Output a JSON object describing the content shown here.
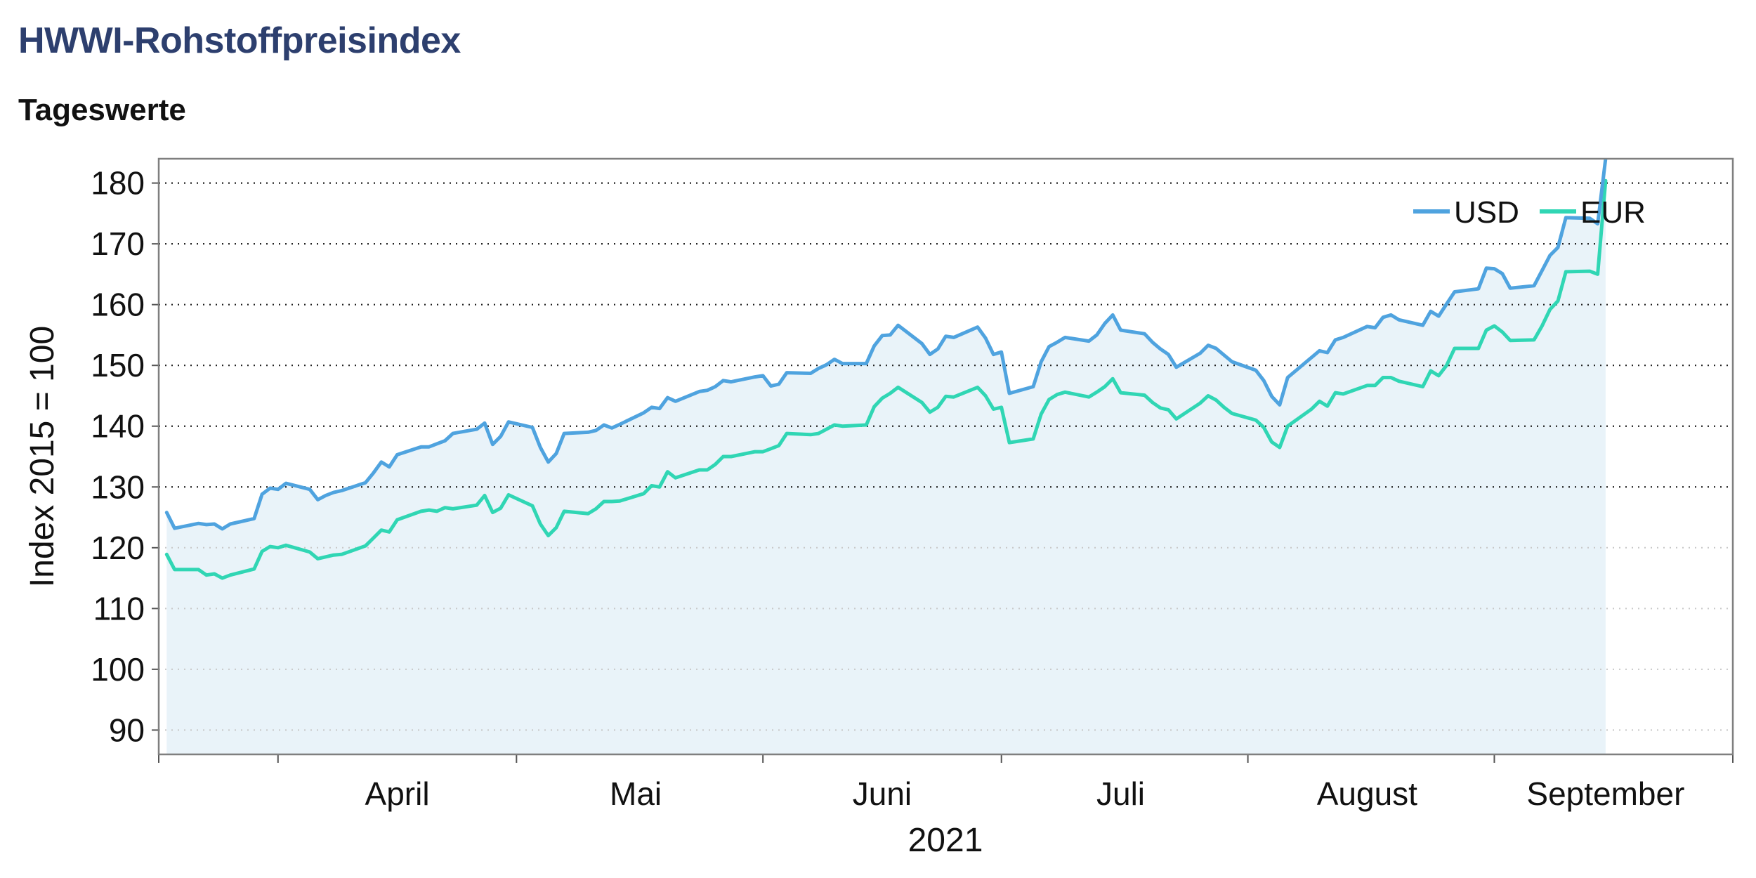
{
  "title": "HWWI-Rohstoffpreisindex",
  "subtitle": "Tageswerte",
  "colors": {
    "title": "#2d3f6e",
    "usd": "#4fa3df",
    "eur": "#30d6b4",
    "area": "#e9f3f9"
  },
  "chart_data": {
    "type": "line",
    "title": "HWWI-Rohstoffpreisindex",
    "subtitle": "Tageswerte",
    "xlabel": "2021",
    "ylabel": "Index 2015 = 100",
    "ylim": [
      86,
      184
    ],
    "yticks": [
      90,
      100,
      110,
      120,
      130,
      140,
      150,
      160,
      170,
      180
    ],
    "x_range": [
      "2021-03-17",
      "2021-10-01"
    ],
    "month_boundaries": [
      "2021-04-01",
      "2021-05-01",
      "2021-06-01",
      "2021-07-01",
      "2021-08-01",
      "2021-09-01",
      "2021-10-01"
    ],
    "month_labels": [
      {
        "label": "April",
        "date": "2021-04-16"
      },
      {
        "label": "Mai",
        "date": "2021-05-16"
      },
      {
        "label": "Juni",
        "date": "2021-06-16"
      },
      {
        "label": "Juli",
        "date": "2021-07-16"
      },
      {
        "label": "August",
        "date": "2021-08-16"
      },
      {
        "label": "September",
        "date": "2021-09-15"
      }
    ],
    "grid": "horizontal dotted",
    "legend": "top-right",
    "series": [
      {
        "name": "USD",
        "color": "#4fa3df",
        "points": [
          [
            "2021-03-18",
            125.8
          ],
          [
            "2021-03-19",
            123.2
          ],
          [
            "2021-03-22",
            124.0
          ],
          [
            "2021-03-23",
            123.8
          ],
          [
            "2021-03-24",
            123.9
          ],
          [
            "2021-03-25",
            123.1
          ],
          [
            "2021-03-26",
            123.9
          ],
          [
            "2021-03-29",
            124.8
          ],
          [
            "2021-03-30",
            128.8
          ],
          [
            "2021-03-31",
            129.8
          ],
          [
            "2021-04-01",
            129.6
          ],
          [
            "2021-04-02",
            130.6
          ],
          [
            "2021-04-05",
            129.6
          ],
          [
            "2021-04-06",
            127.9
          ],
          [
            "2021-04-07",
            128.6
          ],
          [
            "2021-04-08",
            129.1
          ],
          [
            "2021-04-09",
            129.4
          ],
          [
            "2021-04-12",
            130.7
          ],
          [
            "2021-04-13",
            132.3
          ],
          [
            "2021-04-14",
            134.1
          ],
          [
            "2021-04-15",
            133.3
          ],
          [
            "2021-04-16",
            135.3
          ],
          [
            "2021-04-19",
            136.6
          ],
          [
            "2021-04-20",
            136.6
          ],
          [
            "2021-04-21",
            137.1
          ],
          [
            "2021-04-22",
            137.6
          ],
          [
            "2021-04-23",
            138.8
          ],
          [
            "2021-04-26",
            139.5
          ],
          [
            "2021-04-27",
            140.5
          ],
          [
            "2021-04-28",
            137.0
          ],
          [
            "2021-04-29",
            138.3
          ],
          [
            "2021-04-30",
            140.7
          ],
          [
            "2021-05-03",
            139.8
          ],
          [
            "2021-05-04",
            136.5
          ],
          [
            "2021-05-05",
            134.1
          ],
          [
            "2021-05-06",
            135.5
          ],
          [
            "2021-05-07",
            138.8
          ],
          [
            "2021-05-10",
            139.0
          ],
          [
            "2021-05-11",
            139.3
          ],
          [
            "2021-05-12",
            140.2
          ],
          [
            "2021-05-13",
            139.7
          ],
          [
            "2021-05-14",
            140.3
          ],
          [
            "2021-05-17",
            142.2
          ],
          [
            "2021-05-18",
            143.1
          ],
          [
            "2021-05-19",
            142.9
          ],
          [
            "2021-05-20",
            144.7
          ],
          [
            "2021-05-21",
            144.1
          ],
          [
            "2021-05-24",
            145.7
          ],
          [
            "2021-05-25",
            145.9
          ],
          [
            "2021-05-26",
            146.5
          ],
          [
            "2021-05-27",
            147.5
          ],
          [
            "2021-05-28",
            147.3
          ],
          [
            "2021-05-31",
            148.1
          ],
          [
            "2021-06-01",
            148.3
          ],
          [
            "2021-06-02",
            146.6
          ],
          [
            "2021-06-03",
            146.9
          ],
          [
            "2021-06-04",
            148.8
          ],
          [
            "2021-06-07",
            148.7
          ],
          [
            "2021-06-08",
            149.5
          ],
          [
            "2021-06-09",
            150.1
          ],
          [
            "2021-06-10",
            151.0
          ],
          [
            "2021-06-11",
            150.3
          ],
          [
            "2021-06-14",
            150.3
          ],
          [
            "2021-06-15",
            153.2
          ],
          [
            "2021-06-16",
            154.9
          ],
          [
            "2021-06-17",
            155.0
          ],
          [
            "2021-06-18",
            156.6
          ],
          [
            "2021-06-21",
            153.6
          ],
          [
            "2021-06-22",
            151.8
          ],
          [
            "2021-06-23",
            152.7
          ],
          [
            "2021-06-24",
            154.8
          ],
          [
            "2021-06-25",
            154.6
          ],
          [
            "2021-06-28",
            156.3
          ],
          [
            "2021-06-29",
            154.5
          ],
          [
            "2021-06-30",
            151.8
          ],
          [
            "2021-07-01",
            152.2
          ],
          [
            "2021-07-02",
            145.4
          ],
          [
            "2021-07-05",
            146.5
          ],
          [
            "2021-07-06",
            150.6
          ],
          [
            "2021-07-07",
            153.1
          ],
          [
            "2021-07-08",
            153.8
          ],
          [
            "2021-07-09",
            154.6
          ],
          [
            "2021-07-12",
            154.0
          ],
          [
            "2021-07-13",
            155.0
          ],
          [
            "2021-07-14",
            156.9
          ],
          [
            "2021-07-15",
            158.3
          ],
          [
            "2021-07-16",
            155.8
          ],
          [
            "2021-07-19",
            155.2
          ],
          [
            "2021-07-20",
            153.8
          ],
          [
            "2021-07-21",
            152.7
          ],
          [
            "2021-07-22",
            151.8
          ],
          [
            "2021-07-23",
            149.7
          ],
          [
            "2021-07-26",
            152.0
          ],
          [
            "2021-07-27",
            153.3
          ],
          [
            "2021-07-28",
            152.8
          ],
          [
            "2021-07-29",
            151.7
          ],
          [
            "2021-07-30",
            150.6
          ],
          [
            "2021-08-02",
            149.2
          ],
          [
            "2021-08-03",
            147.5
          ],
          [
            "2021-08-04",
            144.9
          ],
          [
            "2021-08-05",
            143.5
          ],
          [
            "2021-08-06",
            148.0
          ],
          [
            "2021-08-09",
            151.3
          ],
          [
            "2021-08-10",
            152.4
          ],
          [
            "2021-08-11",
            152.1
          ],
          [
            "2021-08-12",
            154.2
          ],
          [
            "2021-08-13",
            154.6
          ],
          [
            "2021-08-16",
            156.4
          ],
          [
            "2021-08-17",
            156.2
          ],
          [
            "2021-08-18",
            157.9
          ],
          [
            "2021-08-19",
            158.3
          ],
          [
            "2021-08-20",
            157.5
          ],
          [
            "2021-08-23",
            156.6
          ],
          [
            "2021-08-24",
            158.9
          ],
          [
            "2021-08-25",
            158.1
          ],
          [
            "2021-08-26",
            160.1
          ],
          [
            "2021-08-27",
            162.1
          ],
          [
            "2021-08-30",
            162.6
          ],
          [
            "2021-08-31",
            166.0
          ],
          [
            "2021-09-01",
            165.9
          ],
          [
            "2021-09-02",
            165.1
          ],
          [
            "2021-09-03",
            162.7
          ],
          [
            "2021-09-06",
            163.1
          ],
          [
            "2021-09-07",
            165.6
          ],
          [
            "2021-09-08",
            168.1
          ],
          [
            "2021-09-09",
            169.4
          ],
          [
            "2021-09-10",
            174.3
          ],
          [
            "2021-09-13",
            174.2
          ],
          [
            "2021-09-14",
            173.3
          ],
          [
            "2021-09-15",
            184.0
          ]
        ]
      },
      {
        "name": "EUR",
        "color": "#30d6b4",
        "points": [
          [
            "2021-03-18",
            118.9
          ],
          [
            "2021-03-19",
            116.4
          ],
          [
            "2021-03-22",
            116.4
          ],
          [
            "2021-03-23",
            115.5
          ],
          [
            "2021-03-24",
            115.7
          ],
          [
            "2021-03-25",
            115.0
          ],
          [
            "2021-03-26",
            115.5
          ],
          [
            "2021-03-29",
            116.5
          ],
          [
            "2021-03-30",
            119.4
          ],
          [
            "2021-03-31",
            120.2
          ],
          [
            "2021-04-01",
            120.0
          ],
          [
            "2021-04-02",
            120.4
          ],
          [
            "2021-04-05",
            119.3
          ],
          [
            "2021-04-06",
            118.2
          ],
          [
            "2021-04-07",
            118.5
          ],
          [
            "2021-04-08",
            118.8
          ],
          [
            "2021-04-09",
            118.9
          ],
          [
            "2021-04-12",
            120.3
          ],
          [
            "2021-04-13",
            121.6
          ],
          [
            "2021-04-14",
            122.9
          ],
          [
            "2021-04-15",
            122.6
          ],
          [
            "2021-04-16",
            124.6
          ],
          [
            "2021-04-19",
            126.0
          ],
          [
            "2021-04-20",
            126.2
          ],
          [
            "2021-04-21",
            126.0
          ],
          [
            "2021-04-22",
            126.6
          ],
          [
            "2021-04-23",
            126.4
          ],
          [
            "2021-04-26",
            127.0
          ],
          [
            "2021-04-27",
            128.6
          ],
          [
            "2021-04-28",
            125.8
          ],
          [
            "2021-04-29",
            126.5
          ],
          [
            "2021-04-30",
            128.7
          ],
          [
            "2021-05-03",
            126.9
          ],
          [
            "2021-05-04",
            123.9
          ],
          [
            "2021-05-05",
            122.0
          ],
          [
            "2021-05-06",
            123.3
          ],
          [
            "2021-05-07",
            126.0
          ],
          [
            "2021-05-10",
            125.6
          ],
          [
            "2021-05-11",
            126.4
          ],
          [
            "2021-05-12",
            127.6
          ],
          [
            "2021-05-13",
            127.6
          ],
          [
            "2021-05-14",
            127.7
          ],
          [
            "2021-05-17",
            128.9
          ],
          [
            "2021-05-18",
            130.2
          ],
          [
            "2021-05-19",
            130.0
          ],
          [
            "2021-05-20",
            132.5
          ],
          [
            "2021-05-21",
            131.5
          ],
          [
            "2021-05-24",
            132.8
          ],
          [
            "2021-05-25",
            132.8
          ],
          [
            "2021-05-26",
            133.7
          ],
          [
            "2021-05-27",
            135.0
          ],
          [
            "2021-05-28",
            135.0
          ],
          [
            "2021-05-31",
            135.8
          ],
          [
            "2021-06-01",
            135.8
          ],
          [
            "2021-06-02",
            136.3
          ],
          [
            "2021-06-03",
            136.8
          ],
          [
            "2021-06-04",
            138.8
          ],
          [
            "2021-06-07",
            138.6
          ],
          [
            "2021-06-08",
            138.8
          ],
          [
            "2021-06-09",
            139.5
          ],
          [
            "2021-06-10",
            140.2
          ],
          [
            "2021-06-11",
            140.0
          ],
          [
            "2021-06-14",
            140.2
          ],
          [
            "2021-06-15",
            143.2
          ],
          [
            "2021-06-16",
            144.6
          ],
          [
            "2021-06-17",
            145.4
          ],
          [
            "2021-06-18",
            146.4
          ],
          [
            "2021-06-21",
            143.9
          ],
          [
            "2021-06-22",
            142.3
          ],
          [
            "2021-06-23",
            143.1
          ],
          [
            "2021-06-24",
            144.9
          ],
          [
            "2021-06-25",
            144.8
          ],
          [
            "2021-06-28",
            146.4
          ],
          [
            "2021-06-29",
            145.0
          ],
          [
            "2021-06-30",
            142.8
          ],
          [
            "2021-07-01",
            143.1
          ],
          [
            "2021-07-02",
            137.3
          ],
          [
            "2021-07-05",
            137.9
          ],
          [
            "2021-07-06",
            142.0
          ],
          [
            "2021-07-07",
            144.4
          ],
          [
            "2021-07-08",
            145.2
          ],
          [
            "2021-07-09",
            145.6
          ],
          [
            "2021-07-12",
            144.8
          ],
          [
            "2021-07-13",
            145.6
          ],
          [
            "2021-07-14",
            146.5
          ],
          [
            "2021-07-15",
            147.8
          ],
          [
            "2021-07-16",
            145.5
          ],
          [
            "2021-07-19",
            145.1
          ],
          [
            "2021-07-20",
            143.9
          ],
          [
            "2021-07-21",
            143.0
          ],
          [
            "2021-07-22",
            142.7
          ],
          [
            "2021-07-23",
            141.2
          ],
          [
            "2021-07-26",
            143.8
          ],
          [
            "2021-07-27",
            145.0
          ],
          [
            "2021-07-28",
            144.3
          ],
          [
            "2021-07-29",
            143.1
          ],
          [
            "2021-07-30",
            142.1
          ],
          [
            "2021-08-02",
            141.0
          ],
          [
            "2021-08-03",
            139.8
          ],
          [
            "2021-08-04",
            137.4
          ],
          [
            "2021-08-05",
            136.5
          ],
          [
            "2021-08-06",
            140.0
          ],
          [
            "2021-08-09",
            142.8
          ],
          [
            "2021-08-10",
            144.1
          ],
          [
            "2021-08-11",
            143.3
          ],
          [
            "2021-08-12",
            145.5
          ],
          [
            "2021-08-13",
            145.3
          ],
          [
            "2021-08-16",
            146.7
          ],
          [
            "2021-08-17",
            146.7
          ],
          [
            "2021-08-18",
            148.0
          ],
          [
            "2021-08-19",
            148.0
          ],
          [
            "2021-08-20",
            147.4
          ],
          [
            "2021-08-23",
            146.5
          ],
          [
            "2021-08-24",
            149.1
          ],
          [
            "2021-08-25",
            148.3
          ],
          [
            "2021-08-26",
            150.0
          ],
          [
            "2021-08-27",
            152.8
          ],
          [
            "2021-08-30",
            152.8
          ],
          [
            "2021-08-31",
            155.8
          ],
          [
            "2021-09-01",
            156.5
          ],
          [
            "2021-09-02",
            155.5
          ],
          [
            "2021-09-03",
            154.1
          ],
          [
            "2021-09-06",
            154.2
          ],
          [
            "2021-09-07",
            156.5
          ],
          [
            "2021-09-08",
            159.2
          ],
          [
            "2021-09-09",
            160.6
          ],
          [
            "2021-09-10",
            165.4
          ],
          [
            "2021-09-13",
            165.5
          ],
          [
            "2021-09-14",
            165.0
          ],
          [
            "2021-09-15",
            180.4
          ]
        ]
      }
    ]
  }
}
